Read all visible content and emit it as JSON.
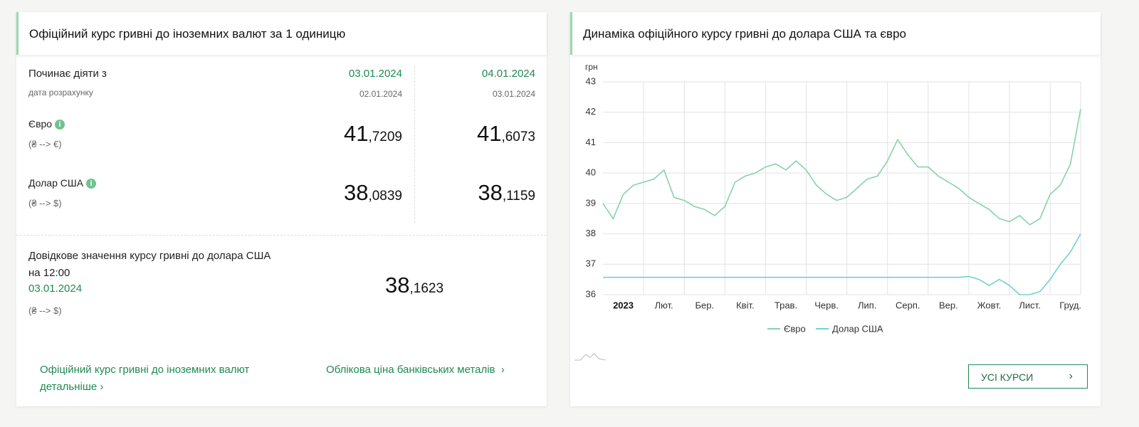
{
  "left": {
    "title": "Офіційний курс гривні до іноземних валют за 1 одиницю",
    "starts_label": "Починає діяти з",
    "calc_label": "дата розрахунку",
    "columns": [
      {
        "date": "03.01.2024",
        "calc_date": "02.01.2024",
        "eur_int": "41",
        "eur_frac": ",7209",
        "usd_int": "38",
        "usd_frac": ",0839"
      },
      {
        "date": "04.01.2024",
        "calc_date": "03.01.2024",
        "eur_int": "41",
        "eur_frac": ",6073",
        "usd_int": "38",
        "usd_frac": ",1159"
      }
    ],
    "eur_label": "Євро",
    "eur_pair": "(₴ --> €)",
    "usd_label": "Долар США",
    "usd_pair": "(₴ --> $)",
    "reference": {
      "text": "Довідкове значення курсу гривні до долара США на 12:00",
      "date": "03.01.2024",
      "pair": "(₴ --> $)",
      "rate_int": "38",
      "rate_frac": ",1623"
    },
    "links": [
      "Офіційний курс гривні до іноземних валют детальніше",
      "Облікова ціна банківських металів"
    ]
  },
  "right": {
    "title": "Динаміка офіційного курсу гривні до долара США та євро",
    "button": "УСІ КУРСИ"
  },
  "chart_data": {
    "type": "line",
    "y_label": "грн",
    "categories": [
      "2023",
      null,
      null,
      null,
      "Лют.",
      null,
      null,
      null,
      "Бер.",
      null,
      null,
      null,
      "Квіт.",
      null,
      null,
      null,
      "Трав.",
      null,
      null,
      null,
      "Черв.",
      null,
      null,
      null,
      "Лип.",
      null,
      null,
      null,
      "Серп.",
      null,
      null,
      null,
      "Вер.",
      null,
      null,
      null,
      "Жовт.",
      null,
      null,
      null,
      "Лист.",
      null,
      null,
      null,
      "Груд.",
      null,
      null,
      null
    ],
    "series": [
      {
        "name": "Євро",
        "color": "#86d3a8",
        "values": [
          39.0,
          38.5,
          39.3,
          39.6,
          39.7,
          39.8,
          40.1,
          39.2,
          39.1,
          38.9,
          38.8,
          38.6,
          38.9,
          39.7,
          39.9,
          40.0,
          40.2,
          40.3,
          40.1,
          40.4,
          40.1,
          39.6,
          39.3,
          39.1,
          39.2,
          39.5,
          39.8,
          39.9,
          40.4,
          41.1,
          40.6,
          40.2,
          40.2,
          39.9,
          39.7,
          39.5,
          39.2,
          39.0,
          38.8,
          38.5,
          38.4,
          38.6,
          38.3,
          38.5,
          39.3,
          39.6,
          40.3,
          42.1
        ]
      },
      {
        "name": "Долар США",
        "color": "#72d2cf",
        "values": [
          36.5686,
          36.5686,
          36.5686,
          36.5686,
          36.5686,
          36.5686,
          36.5686,
          36.5686,
          36.5686,
          36.5686,
          36.5686,
          36.5686,
          36.5686,
          36.5686,
          36.5686,
          36.5686,
          36.5686,
          36.5686,
          36.5686,
          36.5686,
          36.5686,
          36.5686,
          36.5686,
          36.5686,
          36.5686,
          36.5686,
          36.5686,
          36.5686,
          36.5686,
          36.5686,
          36.5686,
          36.5686,
          36.5686,
          36.5686,
          36.5686,
          36.5686,
          36.6,
          36.5,
          36.3,
          36.5,
          36.3,
          36.0,
          36.0,
          36.1,
          36.5,
          37.0,
          37.4,
          38.0
        ]
      }
    ],
    "ylim": [
      36,
      43
    ],
    "yticks": [
      36,
      37,
      38,
      39,
      40,
      41,
      42,
      43
    ],
    "grid": true,
    "legend": "bottom"
  }
}
